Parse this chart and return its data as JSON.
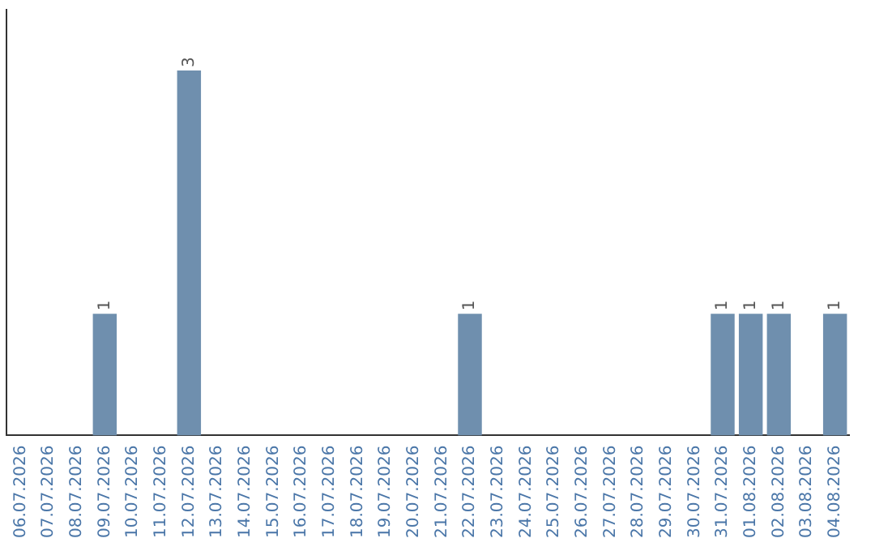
{
  "chart_data": {
    "type": "bar",
    "categories": [
      "06.07.2026",
      "07.07.2026",
      "08.07.2026",
      "09.07.2026",
      "10.07.2026",
      "11.07.2026",
      "12.07.2026",
      "13.07.2026",
      "14.07.2026",
      "15.07.2026",
      "16.07.2026",
      "17.07.2026",
      "18.07.2026",
      "19.07.2026",
      "20.07.2026",
      "21.07.2026",
      "22.07.2026",
      "23.07.2026",
      "24.07.2026",
      "25.07.2026",
      "26.07.2026",
      "27.07.2026",
      "28.07.2026",
      "29.07.2026",
      "30.07.2026",
      "31.07.2026",
      "01.08.2026",
      "02.08.2026",
      "03.08.2026",
      "04.08.2026"
    ],
    "values": [
      0,
      0,
      0,
      1,
      0,
      0,
      3,
      0,
      0,
      0,
      0,
      0,
      0,
      0,
      0,
      0,
      1,
      0,
      0,
      0,
      0,
      0,
      0,
      0,
      0,
      1,
      1,
      1,
      0,
      1
    ],
    "value_labels": [
      null,
      null,
      null,
      "1",
      null,
      null,
      "3",
      null,
      null,
      null,
      null,
      null,
      null,
      null,
      null,
      null,
      "1",
      null,
      null,
      null,
      null,
      null,
      null,
      null,
      null,
      "1",
      "1",
      "1",
      null,
      "1"
    ],
    "color": "#6f8fae",
    "grid": false,
    "legend": false
  }
}
